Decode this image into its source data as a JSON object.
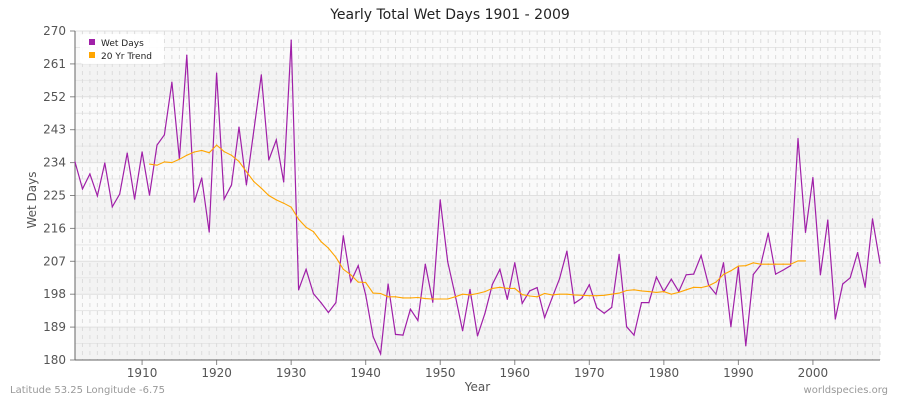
{
  "chart_data": {
    "type": "line",
    "title": "Yearly Total Wet Days 1901 - 2009",
    "xlabel": "Year",
    "ylabel": "Wet Days",
    "xlim": [
      1901,
      2009
    ],
    "ylim": [
      180,
      270
    ],
    "yticks": [
      180,
      189,
      198,
      207,
      216,
      225,
      234,
      243,
      252,
      261,
      270
    ],
    "xticks": [
      1910,
      1920,
      1930,
      1940,
      1950,
      1960,
      1970,
      1980,
      1990,
      2000
    ],
    "grid": true,
    "legend_position": "top-left",
    "series": [
      {
        "name": "Wet Days",
        "color": "#a020a8",
        "start_year": 1901,
        "values": [
          234.2,
          226.8,
          230.9,
          224.9,
          233.9,
          221.9,
          225.4,
          236.6,
          224.0,
          236.9,
          225.1,
          238.8,
          241.6,
          256.0,
          235.0,
          263.4,
          223.2,
          229.8,
          215.0,
          258.5,
          224.0,
          227.9,
          243.7,
          227.9,
          242.9,
          258.0,
          234.7,
          240.2,
          228.7,
          267.5,
          199.2,
          204.8,
          198.1,
          195.7,
          193.0,
          195.7,
          214.0,
          201.4,
          205.8,
          197.8,
          186.4,
          181.7,
          200.8,
          187.0,
          186.8,
          193.9,
          190.8,
          206.2,
          195.8,
          223.8,
          206.9,
          197.8,
          188.0,
          199.3,
          186.6,
          192.8,
          200.7,
          204.8,
          196.6,
          206.6,
          195.5,
          198.9,
          199.8,
          191.6,
          196.9,
          202.2,
          209.8,
          195.5,
          196.9,
          200.6,
          194.3,
          192.8,
          194.4,
          208.9,
          189.1,
          186.8,
          195.7,
          195.7,
          202.7,
          198.7,
          202.1,
          198.7,
          203.3,
          203.5,
          208.6,
          200.5,
          198.0,
          206.6,
          189.1,
          205.5,
          183.9,
          203.4,
          206.0,
          214.7,
          203.5,
          204.6,
          205.8,
          240.6,
          214.9,
          229.9,
          203.3,
          218.3,
          191.2,
          200.8,
          202.5,
          209.4,
          199.9,
          218.6,
          206.5
        ]
      },
      {
        "name": "20 Yr Trend",
        "color": "#ffa500",
        "start_year": 1911,
        "values": [
          233.6,
          233.3,
          234.2,
          234.0,
          234.9,
          236.0,
          236.9,
          237.3,
          236.7,
          238.8,
          237.0,
          236.0,
          234.3,
          231.5,
          228.8,
          227.0,
          225.0,
          223.8,
          222.9,
          221.8,
          218.5,
          216.3,
          215.1,
          212.4,
          210.6,
          208.1,
          204.8,
          203.3,
          201.3,
          201.2,
          198.3,
          198.2,
          197.3,
          197.3,
          197.0,
          197.0,
          197.1,
          196.8,
          196.7,
          196.7,
          196.7,
          197.3,
          198.0,
          197.8,
          198.2,
          198.7,
          199.6,
          199.9,
          199.6,
          199.6,
          197.9,
          197.5,
          197.3,
          198.2,
          197.8,
          198.0,
          198.0,
          197.8,
          197.7,
          197.6,
          197.6,
          197.7,
          198.0,
          198.3,
          199.0,
          199.2,
          198.9,
          198.7,
          198.5,
          198.7,
          198.0,
          198.5,
          199.2,
          199.9,
          199.8,
          200.3,
          201.3,
          203.4,
          204.4,
          205.7,
          205.8,
          206.6,
          206.2,
          206.2,
          206.2,
          206.2,
          206.2,
          207.1,
          207.1
        ]
      }
    ]
  },
  "footer": {
    "location": "Latitude 53.25 Longitude -6.75",
    "credit": "worldspecies.org"
  }
}
